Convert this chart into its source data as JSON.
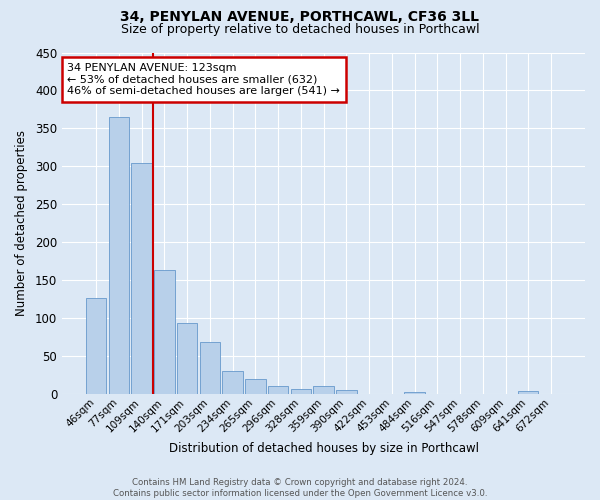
{
  "title1": "34, PENYLAN AVENUE, PORTHCAWL, CF36 3LL",
  "title2": "Size of property relative to detached houses in Porthcawl",
  "xlabel": "Distribution of detached houses by size in Porthcawl",
  "ylabel": "Number of detached properties",
  "bar_labels": [
    "46sqm",
    "77sqm",
    "109sqm",
    "140sqm",
    "171sqm",
    "203sqm",
    "234sqm",
    "265sqm",
    "296sqm",
    "328sqm",
    "359sqm",
    "390sqm",
    "422sqm",
    "453sqm",
    "484sqm",
    "516sqm",
    "547sqm",
    "578sqm",
    "609sqm",
    "641sqm",
    "672sqm"
  ],
  "bar_values": [
    127,
    365,
    305,
    163,
    94,
    69,
    30,
    20,
    10,
    7,
    10,
    5,
    0,
    0,
    3,
    0,
    0,
    0,
    0,
    4,
    0
  ],
  "bar_color": "#b8d0ea",
  "bar_edge_color": "#6699cc",
  "property_line_x": 2.5,
  "annotation_text": "34 PENYLAN AVENUE: 123sqm\n← 53% of detached houses are smaller (632)\n46% of semi-detached houses are larger (541) →",
  "annotation_box_color": "#ffffff",
  "annotation_box_edge": "#cc0000",
  "vline_color": "#cc0000",
  "ylim": [
    0,
    450
  ],
  "yticks": [
    0,
    50,
    100,
    150,
    200,
    250,
    300,
    350,
    400,
    450
  ],
  "footnote": "Contains HM Land Registry data © Crown copyright and database right 2024.\nContains public sector information licensed under the Open Government Licence v3.0.",
  "bg_color": "#dce8f5",
  "plot_bg_color": "#dce8f5",
  "grid_color": "#ffffff",
  "title1_fontsize": 10,
  "title2_fontsize": 9
}
